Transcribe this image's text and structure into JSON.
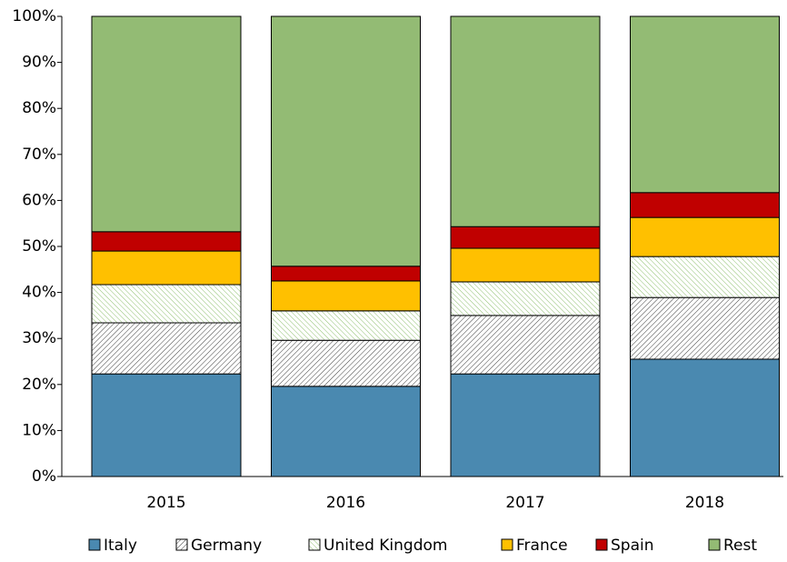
{
  "chart_data": {
    "type": "stacked_bar",
    "categories": [
      "2015",
      "2016",
      "2017",
      "2018"
    ],
    "series": [
      {
        "name": "Italy",
        "color": "#4a89b0",
        "values": [
          22.3,
          19.6,
          22.3,
          25.5
        ]
      },
      {
        "name": "Germany",
        "color": "#404040",
        "pattern": "hatch",
        "values": [
          11.1,
          10.0,
          12.7,
          13.4
        ]
      },
      {
        "name": "United Kingdom",
        "color": "#8fbf6f",
        "pattern": "hatch",
        "values": [
          8.3,
          6.4,
          7.3,
          8.9
        ]
      },
      {
        "name": "France",
        "color": "#ffc000",
        "values": [
          7.3,
          6.5,
          7.3,
          8.5
        ]
      },
      {
        "name": "Spain",
        "color": "#c00000",
        "values": [
          4.2,
          3.2,
          4.7,
          5.4
        ]
      },
      {
        "name": "Rest",
        "color": "#93bb74",
        "values": [
          46.8,
          54.3,
          45.7,
          38.3
        ]
      }
    ],
    "ylim": [
      0,
      100
    ],
    "yticks": [
      {
        "value": 0,
        "label": "0%"
      },
      {
        "value": 10,
        "label": "10%"
      },
      {
        "value": 20,
        "label": "20%"
      },
      {
        "value": 30,
        "label": "30%"
      },
      {
        "value": 40,
        "label": "40%"
      },
      {
        "value": 50,
        "label": "50%"
      },
      {
        "value": 60,
        "label": "60%"
      },
      {
        "value": 70,
        "label": "70%"
      },
      {
        "value": 80,
        "label": "80%"
      },
      {
        "value": 90,
        "label": "90%"
      },
      {
        "value": 100,
        "label": "100%"
      }
    ],
    "grid": false,
    "legend": "bottom"
  }
}
